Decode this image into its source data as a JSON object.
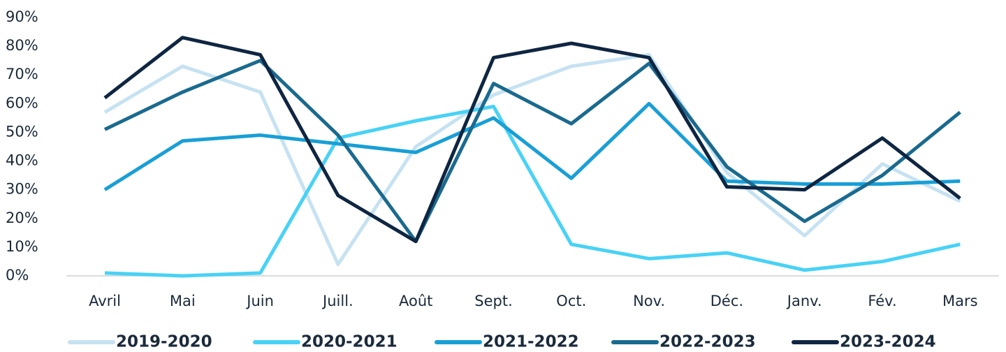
{
  "chart_data": {
    "type": "line",
    "categories": [
      "Avril",
      "Mai",
      "Juin",
      "Juill.",
      "Août",
      "Sept.",
      "Oct.",
      "Nov.",
      "Déc.",
      "Janv.",
      "Fév.",
      "Mars"
    ],
    "series": [
      {
        "name": "2019-2020",
        "color": "#c6e2f2",
        "values": [
          57,
          73,
          64,
          4,
          45,
          63,
          73,
          77,
          36,
          14,
          39,
          26
        ]
      },
      {
        "name": "2020-2021",
        "color": "#48d2f6",
        "values": [
          1,
          0,
          1,
          48,
          54,
          59,
          11,
          6,
          8,
          2,
          5,
          11
        ]
      },
      {
        "name": "2021-2022",
        "color": "#189fd6",
        "values": [
          30,
          47,
          49,
          46,
          43,
          55,
          34,
          60,
          33,
          32,
          32,
          33
        ]
      },
      {
        "name": "2022-2023",
        "color": "#1a6a8e",
        "values": [
          51,
          64,
          75,
          49,
          12,
          67,
          53,
          74,
          38,
          19,
          35,
          57
        ]
      },
      {
        "name": "2023-2024",
        "color": "#0f2642",
        "values": [
          62,
          83,
          77,
          28,
          12,
          76,
          81,
          76,
          31,
          30,
          48,
          27
        ]
      }
    ],
    "ylim": [
      0,
      90
    ],
    "yticks": [
      {
        "value": 0,
        "label": "0%"
      },
      {
        "value": 10,
        "label": "10%"
      },
      {
        "value": 20,
        "label": "20%"
      },
      {
        "value": 30,
        "label": "30%"
      },
      {
        "value": 40,
        "label": "40%"
      },
      {
        "value": 50,
        "label": "50%"
      },
      {
        "value": 60,
        "label": "60%"
      },
      {
        "value": 70,
        "label": "70%"
      },
      {
        "value": 80,
        "label": "80%"
      },
      {
        "value": 90,
        "label": "90%"
      }
    ],
    "grid": false,
    "legend": "bottom"
  }
}
